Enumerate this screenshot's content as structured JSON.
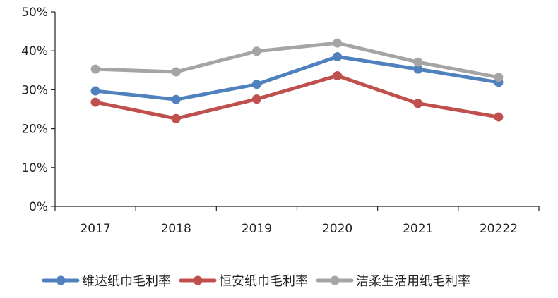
{
  "chart_data": {
    "type": "line",
    "title": "",
    "xlabel": "",
    "ylabel": "",
    "categories": [
      "2017",
      "2018",
      "2019",
      "2020",
      "2021",
      "20222"
    ],
    "ylim": [
      0,
      50
    ],
    "y_ticks": [
      "0%",
      "10%",
      "20%",
      "30%",
      "40%",
      "50%"
    ],
    "grid": false,
    "legend_position": "bottom",
    "series": [
      {
        "name": "维达纸巾毛利率",
        "color": "#4f81bd",
        "values": [
          29.7,
          27.5,
          31.4,
          38.5,
          35.3,
          31.9
        ]
      },
      {
        "name": "恒安纸巾毛利率",
        "color": "#c0504d",
        "values": [
          26.8,
          22.6,
          27.6,
          33.6,
          26.5,
          23.0
        ]
      },
      {
        "name": "洁柔生活用纸毛利率",
        "color": "#a5a5a5",
        "values": [
          35.3,
          34.6,
          39.9,
          42.0,
          37.1,
          33.2
        ]
      }
    ]
  }
}
